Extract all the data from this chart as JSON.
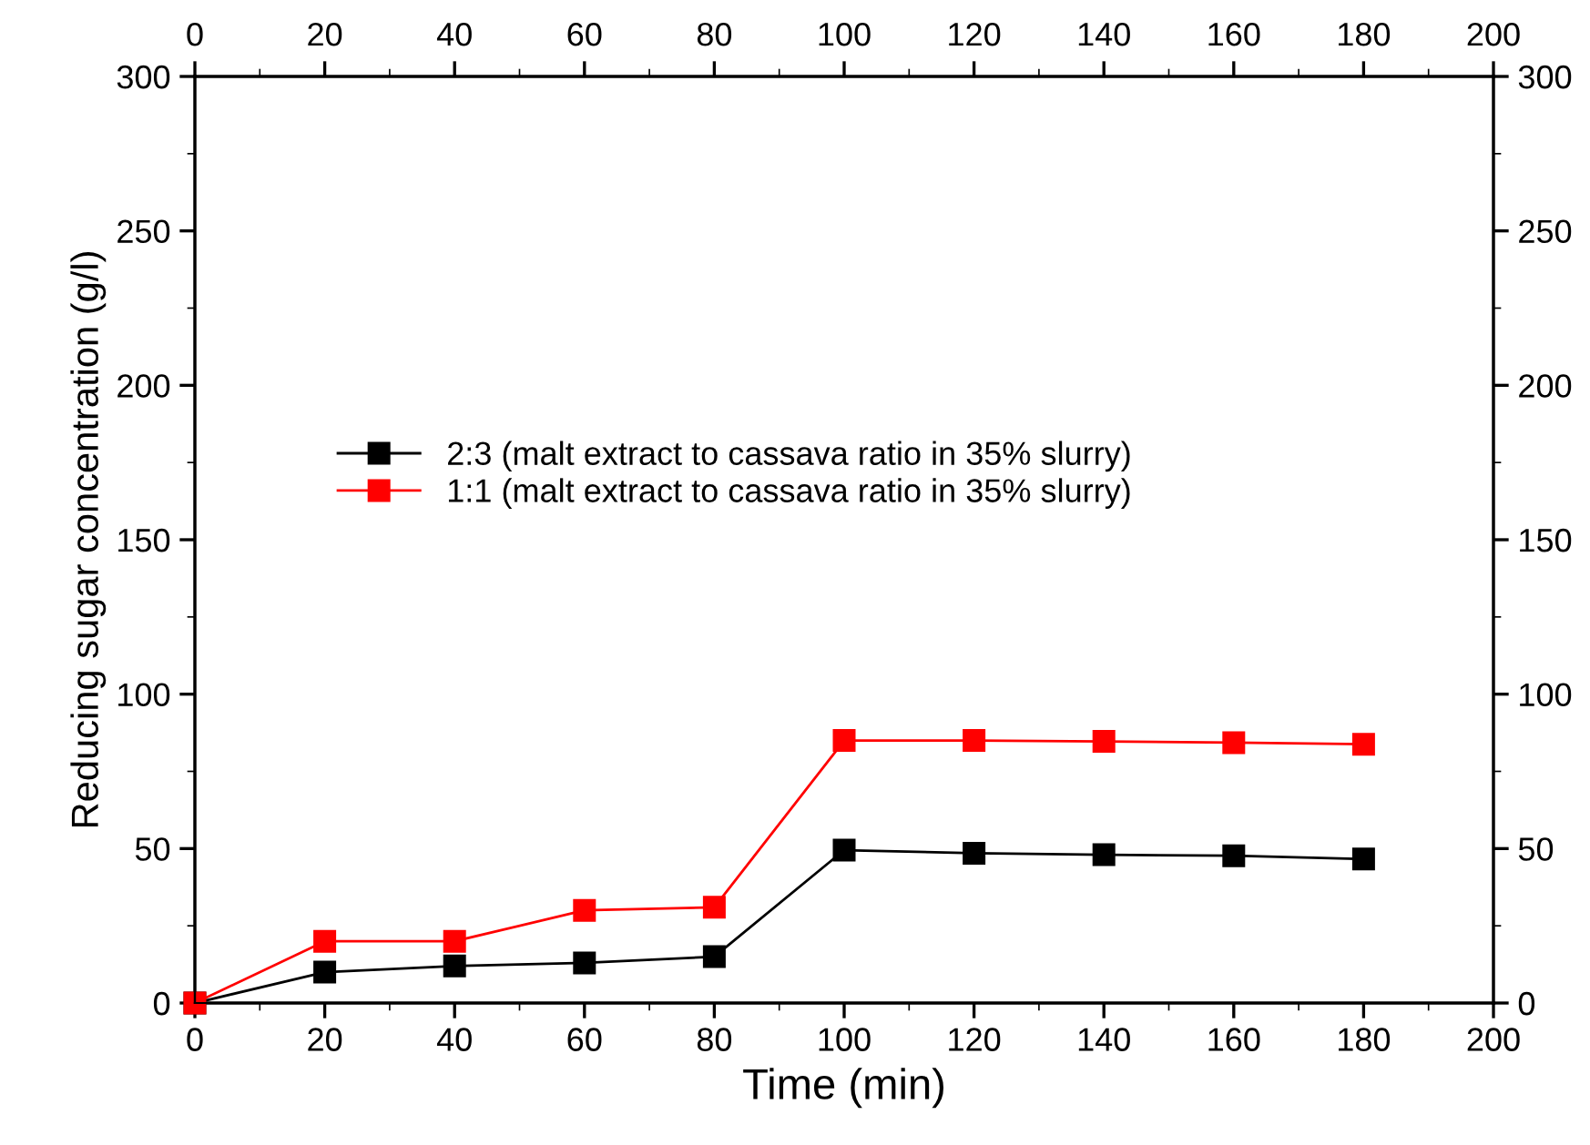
{
  "chart_data": {
    "type": "line",
    "xlabel": "Time (min)",
    "ylabel": "Reducing sugar concentration (g/l)",
    "x": [
      0,
      20,
      40,
      60,
      80,
      100,
      120,
      140,
      160,
      180
    ],
    "series": [
      {
        "name": "2:3 (malt extract to cassava ratio in 35% slurry)",
        "color": "#000000",
        "values": [
          0,
          10,
          12,
          13,
          15,
          49.5,
          48.5,
          48,
          47.7,
          46.6
        ]
      },
      {
        "name": "1:1 (malt extract to cassava ratio in 35% slurry)",
        "color": "#ff0000",
        "values": [
          0,
          20,
          20,
          30,
          31,
          85,
          85,
          84.7,
          84.3,
          83.8
        ]
      }
    ],
    "xlim": [
      0,
      200
    ],
    "xticks": [
      0,
      20,
      40,
      60,
      80,
      100,
      120,
      140,
      160,
      180,
      200
    ],
    "x2lim": [
      0,
      200
    ],
    "x2ticks": [
      0,
      20,
      40,
      60,
      80,
      100,
      120,
      140,
      160,
      180,
      200
    ],
    "ylim": [
      0,
      300
    ],
    "yticks": [
      0,
      50,
      100,
      150,
      200,
      250,
      300
    ],
    "y2lim": [
      0,
      300
    ],
    "y2ticks": [
      0,
      50,
      100,
      150,
      200,
      250,
      300
    ],
    "marker": "square",
    "line_style": "solid",
    "legend": "left",
    "grid": false
  }
}
